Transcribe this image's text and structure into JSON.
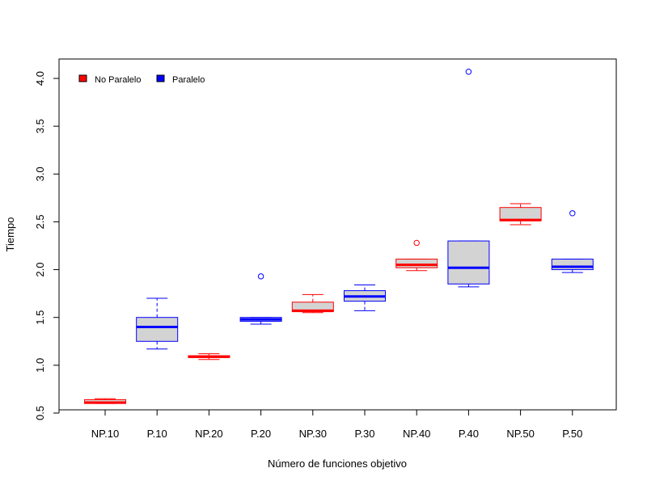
{
  "chart_data": {
    "type": "box",
    "title": "",
    "xlabel": "Número de funciones objetivo",
    "ylabel": "Tiempo",
    "ylim": [
      0.5,
      4.2
    ],
    "yticks": [
      "0.5",
      "1.0",
      "1.5",
      "2.0",
      "2.5",
      "3.0",
      "3.5",
      "4.0"
    ],
    "grid": false,
    "legend": {
      "placement": "top-left",
      "entries": [
        {
          "name": "No Paralelo",
          "color": "#ff0000"
        },
        {
          "name": "Paralelo",
          "color": "#0000ff"
        }
      ]
    },
    "box_fill": "#d3d3d3",
    "categories": [
      "NP.10",
      "P.10",
      "NP.20",
      "P.20",
      "NP.30",
      "P.30",
      "NP.40",
      "P.40",
      "NP.50",
      "P.50"
    ],
    "boxes": [
      {
        "category": "NP.10",
        "group": "No Paralelo",
        "min": 0.6,
        "q1": 0.6,
        "median": 0.61,
        "q3": 0.64,
        "max": 0.65,
        "outliers": []
      },
      {
        "category": "P.10",
        "group": "Paralelo",
        "min": 1.17,
        "q1": 1.25,
        "median": 1.4,
        "q3": 1.5,
        "max": 1.7,
        "outliers": []
      },
      {
        "category": "NP.20",
        "group": "No Paralelo",
        "min": 1.06,
        "q1": 1.08,
        "median": 1.09,
        "q3": 1.1,
        "max": 1.12,
        "outliers": []
      },
      {
        "category": "P.20",
        "group": "Paralelo",
        "min": 1.43,
        "q1": 1.46,
        "median": 1.48,
        "q3": 1.5,
        "max": 1.5,
        "outliers": [
          1.93
        ]
      },
      {
        "category": "NP.30",
        "group": "No Paralelo",
        "min": 1.55,
        "q1": 1.56,
        "median": 1.57,
        "q3": 1.66,
        "max": 1.74,
        "outliers": []
      },
      {
        "category": "P.30",
        "group": "Paralelo",
        "min": 1.57,
        "q1": 1.67,
        "median": 1.72,
        "q3": 1.78,
        "max": 1.84,
        "outliers": []
      },
      {
        "category": "NP.40",
        "group": "No Paralelo",
        "min": 1.99,
        "q1": 2.02,
        "median": 2.05,
        "q3": 2.11,
        "max": 2.11,
        "outliers": [
          2.28
        ]
      },
      {
        "category": "P.40",
        "group": "Paralelo",
        "min": 1.82,
        "q1": 1.85,
        "median": 2.02,
        "q3": 2.3,
        "max": 2.3,
        "outliers": [
          4.07
        ]
      },
      {
        "category": "NP.50",
        "group": "No Paralelo",
        "min": 2.47,
        "q1": 2.51,
        "median": 2.52,
        "q3": 2.65,
        "max": 2.69,
        "outliers": []
      },
      {
        "category": "P.50",
        "group": "Paralelo",
        "min": 1.97,
        "q1": 2.0,
        "median": 2.03,
        "q3": 2.11,
        "max": 2.11,
        "outliers": [
          2.59
        ]
      }
    ]
  }
}
